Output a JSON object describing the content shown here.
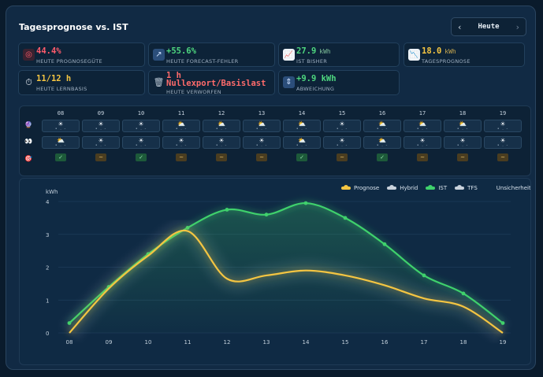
{
  "header": {
    "title": "Tagesprognose vs. IST"
  },
  "nav": {
    "prev": "‹",
    "label": "Heute",
    "next": "›"
  },
  "kpis": {
    "prognose_guete": {
      "value": "44.4%",
      "label": "HEUTE PROGNOSEGÜTE",
      "icon": "target-icon",
      "color": "#ff5b6b"
    },
    "forecast_fehler": {
      "value": "+55.6%",
      "label": "HEUTE FORECAST-FEHLER",
      "icon": "trend-arrow-icon",
      "color": "#4ed77f"
    },
    "ist_bisher": {
      "value": "27.9",
      "unit": "kWh",
      "label": "IST BISHER",
      "icon": "chart-up-icon",
      "color": "#4ed77f"
    },
    "tagesprognose": {
      "value": "18.0",
      "unit": "kWh",
      "label": "TAGESPROGNOSE",
      "icon": "chart-down-icon",
      "color": "#f4c542"
    },
    "lernbasis": {
      "value": "11/12 h",
      "label": "HEUTE LERNBASIS",
      "icon": "stopwatch-icon",
      "color": "#f4c542"
    },
    "verworfen": {
      "value_line1": "1 h",
      "value_line2": "Nullexport/Basislast",
      "label": "HEUTE VERWORFEN",
      "icon": "trash-icon",
      "color": "#ff6b6b"
    },
    "abweichung": {
      "value": "+9.9 kWh",
      "label": "ABWEICHUNG",
      "icon": "updown-arrow-icon",
      "color": "#4ed77f"
    }
  },
  "weather": {
    "hours": [
      "08",
      "09",
      "10",
      "11",
      "12",
      "13",
      "14",
      "15",
      "16",
      "17",
      "18",
      "19"
    ],
    "row_icons": [
      "crystal-ball-icon",
      "eyes-icon",
      "target-icon"
    ],
    "forecast": [
      "☀",
      "☀",
      "☀",
      "⛅",
      "⛅",
      "⛅",
      "⛅",
      "☀",
      "⛅",
      "⛅",
      "⛅",
      "☀"
    ],
    "observed": [
      "⛅",
      "☀",
      "☀",
      "☀",
      "☀",
      "☀",
      "⛅",
      "☀",
      "⛅",
      "☀",
      "☀",
      "☀"
    ],
    "detail": "• . -",
    "match": [
      "✓",
      "~",
      "✓",
      "~",
      "~",
      "~",
      "✓",
      "~",
      "✓",
      "~",
      "~",
      "~"
    ]
  },
  "legend": {
    "prognose": {
      "label": "Prognose",
      "color": "#f4c542"
    },
    "hybrid": {
      "label": "Hybrid",
      "color": "#c9d2dc"
    },
    "ist": {
      "label": "IST",
      "color": "#3fd16c"
    },
    "tfs": {
      "label": "TFS",
      "color": "#c9d2dc"
    },
    "unsicherheit": {
      "label": "Unsicherheit"
    }
  },
  "chart_data": {
    "type": "line",
    "ylabel": "kWh",
    "ylim": [
      0,
      4
    ],
    "yticks": [
      "0",
      "1",
      "2",
      "3",
      "4"
    ],
    "x": [
      "08",
      "09",
      "10",
      "11",
      "12",
      "13",
      "14",
      "15",
      "16",
      "17",
      "18",
      "19"
    ],
    "series": [
      {
        "name": "IST",
        "color": "#3fd16c",
        "values": [
          0.3,
          1.4,
          2.4,
          3.2,
          3.75,
          3.6,
          3.95,
          3.5,
          2.7,
          1.75,
          1.2,
          0.3
        ]
      },
      {
        "name": "Prognose",
        "color": "#f4c542",
        "values": [
          0.0,
          1.35,
          2.35,
          3.1,
          1.65,
          1.75,
          1.9,
          1.75,
          1.45,
          1.05,
          0.8,
          0.0
        ]
      }
    ],
    "grid": true
  }
}
